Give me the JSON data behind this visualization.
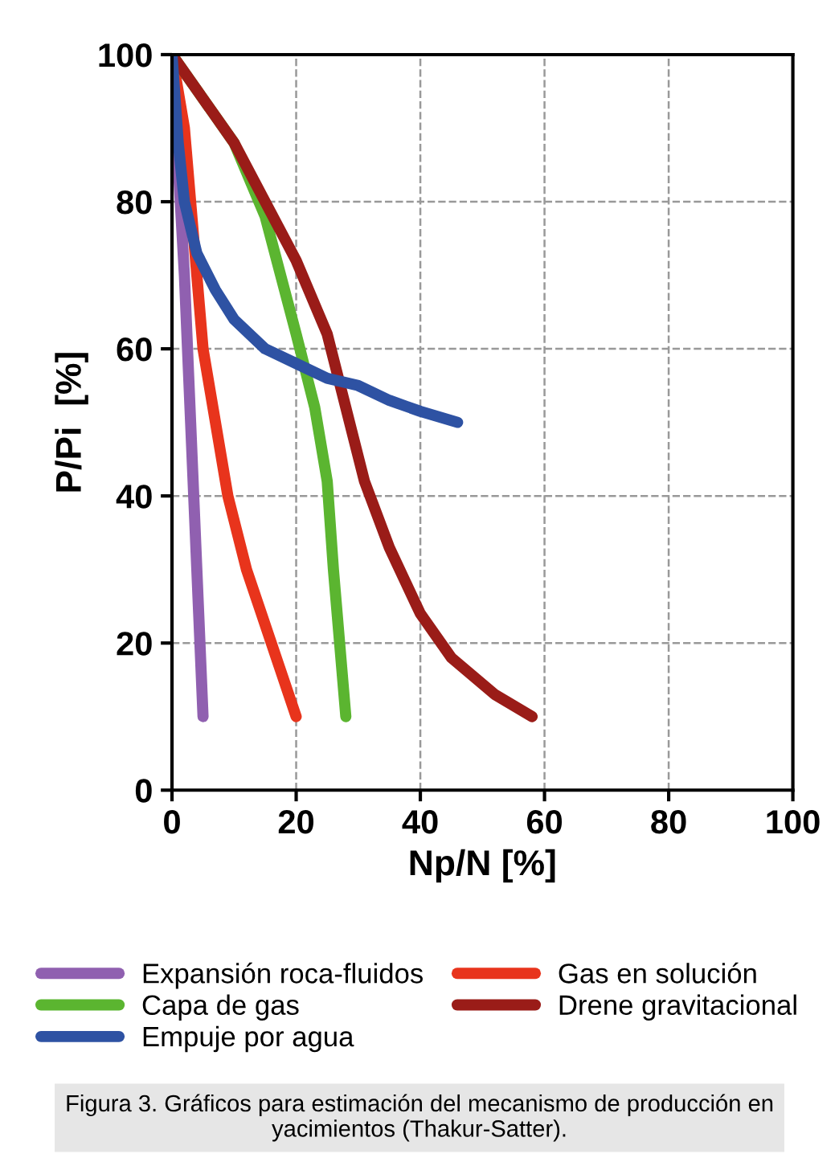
{
  "chart_data": {
    "type": "line",
    "xlabel": "Np/N [%]",
    "ylabel": "P/Pi  [%]",
    "xlim": [
      0,
      100
    ],
    "ylim": [
      0,
      100
    ],
    "xticks": [
      0,
      20,
      40,
      60,
      80,
      100
    ],
    "yticks": [
      0,
      20,
      40,
      60,
      80,
      100
    ],
    "grid": true,
    "legend": "bottom",
    "line_style": "solid",
    "marker": "none",
    "series": [
      {
        "name": "Expansión roca-fluidos",
        "color": "#9060b0",
        "x": [
          0,
          1,
          2,
          3,
          4,
          4.5,
          5
        ],
        "values": [
          100,
          85,
          70,
          50,
          30,
          20,
          10
        ]
      },
      {
        "name": "Gas en solución",
        "color": "#e8341c",
        "x": [
          0,
          2,
          3,
          5,
          7,
          9,
          12,
          16,
          20
        ],
        "values": [
          100,
          90,
          80,
          60,
          50,
          40,
          30,
          20,
          10
        ]
      },
      {
        "name": "Capa de gas",
        "color": "#5bb530",
        "x": [
          0,
          10,
          15,
          20,
          23,
          25,
          26,
          27,
          28
        ],
        "values": [
          100,
          88,
          78,
          62,
          52,
          42,
          30,
          20,
          10
        ]
      },
      {
        "name": "Drene gravitacional",
        "color": "#9a1c18",
        "x": [
          0,
          10,
          20,
          25,
          28,
          31,
          35,
          40,
          45,
          52,
          58
        ],
        "values": [
          100,
          88,
          72,
          62,
          52,
          42,
          33,
          24,
          18,
          13,
          10
        ]
      },
      {
        "name": "Empuje por agua",
        "color": "#2e52a3",
        "x": [
          0,
          1,
          2,
          4,
          7,
          10,
          15,
          20,
          25,
          30,
          35,
          40,
          46
        ],
        "values": [
          100,
          88,
          80,
          73,
          68,
          64,
          60,
          58,
          56,
          55,
          53,
          51.5,
          50
        ]
      }
    ],
    "annotations": [
      "Figura 3. Gráficos para estimación del mecanismo de producción en yacimientos (Thakur-Satter)."
    ]
  }
}
